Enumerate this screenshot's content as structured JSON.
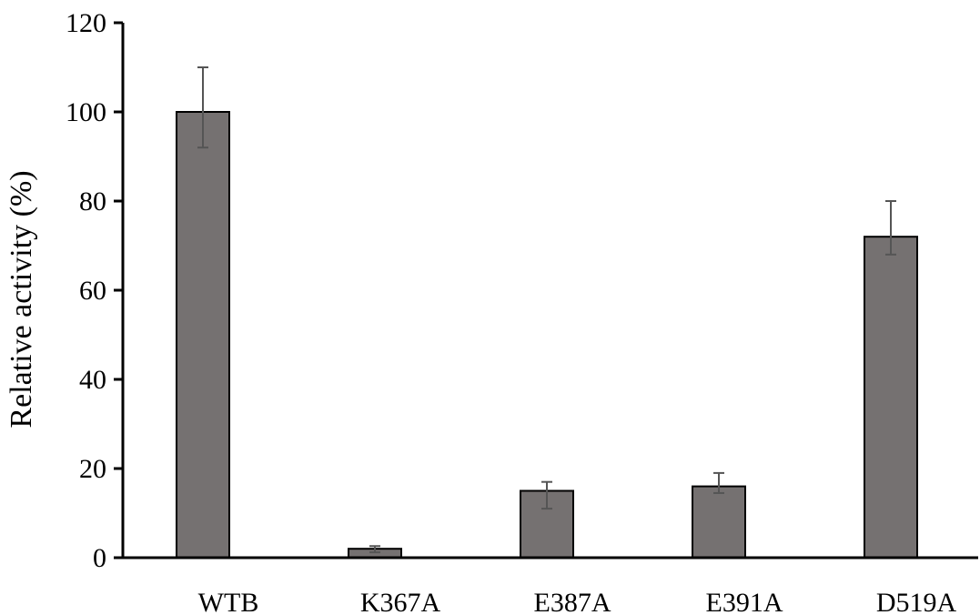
{
  "chart_data": {
    "type": "bar",
    "categories": [
      "WTB",
      "K367A",
      "E387A",
      "E391A",
      "D519A"
    ],
    "values": [
      100,
      2,
      15,
      16,
      72
    ],
    "error_low": [
      92,
      1.2,
      11,
      14.5,
      68
    ],
    "error_high": [
      110,
      2.6,
      17,
      19,
      80
    ],
    "title": "",
    "xlabel": "",
    "ylabel": "Relative activity (%)",
    "ylim": [
      0,
      120
    ],
    "yticks": [
      0,
      20,
      40,
      60,
      80,
      100,
      120
    ],
    "grid": false,
    "legend": "none",
    "bar_color": "#757171",
    "bar_edge_color": "#000000",
    "error_color": "#555555"
  }
}
